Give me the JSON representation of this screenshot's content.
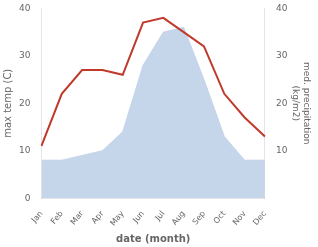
{
  "chart_data": {
    "type": "line",
    "categories": [
      "Jan",
      "Feb",
      "Mar",
      "Apr",
      "May",
      "Jun",
      "Jul",
      "Aug",
      "Sep",
      "Oct",
      "Nov",
      "Dec"
    ],
    "series": [
      {
        "type": "area",
        "color": "#c5d5ea",
        "values": [
          8,
          8,
          9,
          10,
          14,
          28,
          35,
          36,
          25,
          13,
          8,
          8
        ]
      },
      {
        "type": "line",
        "color": "#c0392b",
        "values": [
          11,
          22,
          27,
          27,
          26,
          37,
          38,
          35,
          32,
          22,
          17,
          13
        ]
      }
    ],
    "xlabel": "date (month)",
    "ylabel": "max temp (C)",
    "y2label": "med. precipitation\n(kg/m2)",
    "ylim": [
      0,
      40
    ],
    "yticks": [
      0,
      10,
      20,
      30,
      40
    ],
    "y2lim": [
      0,
      40
    ],
    "y2ticks": [
      10,
      20,
      30,
      40
    ],
    "grid": false
  }
}
